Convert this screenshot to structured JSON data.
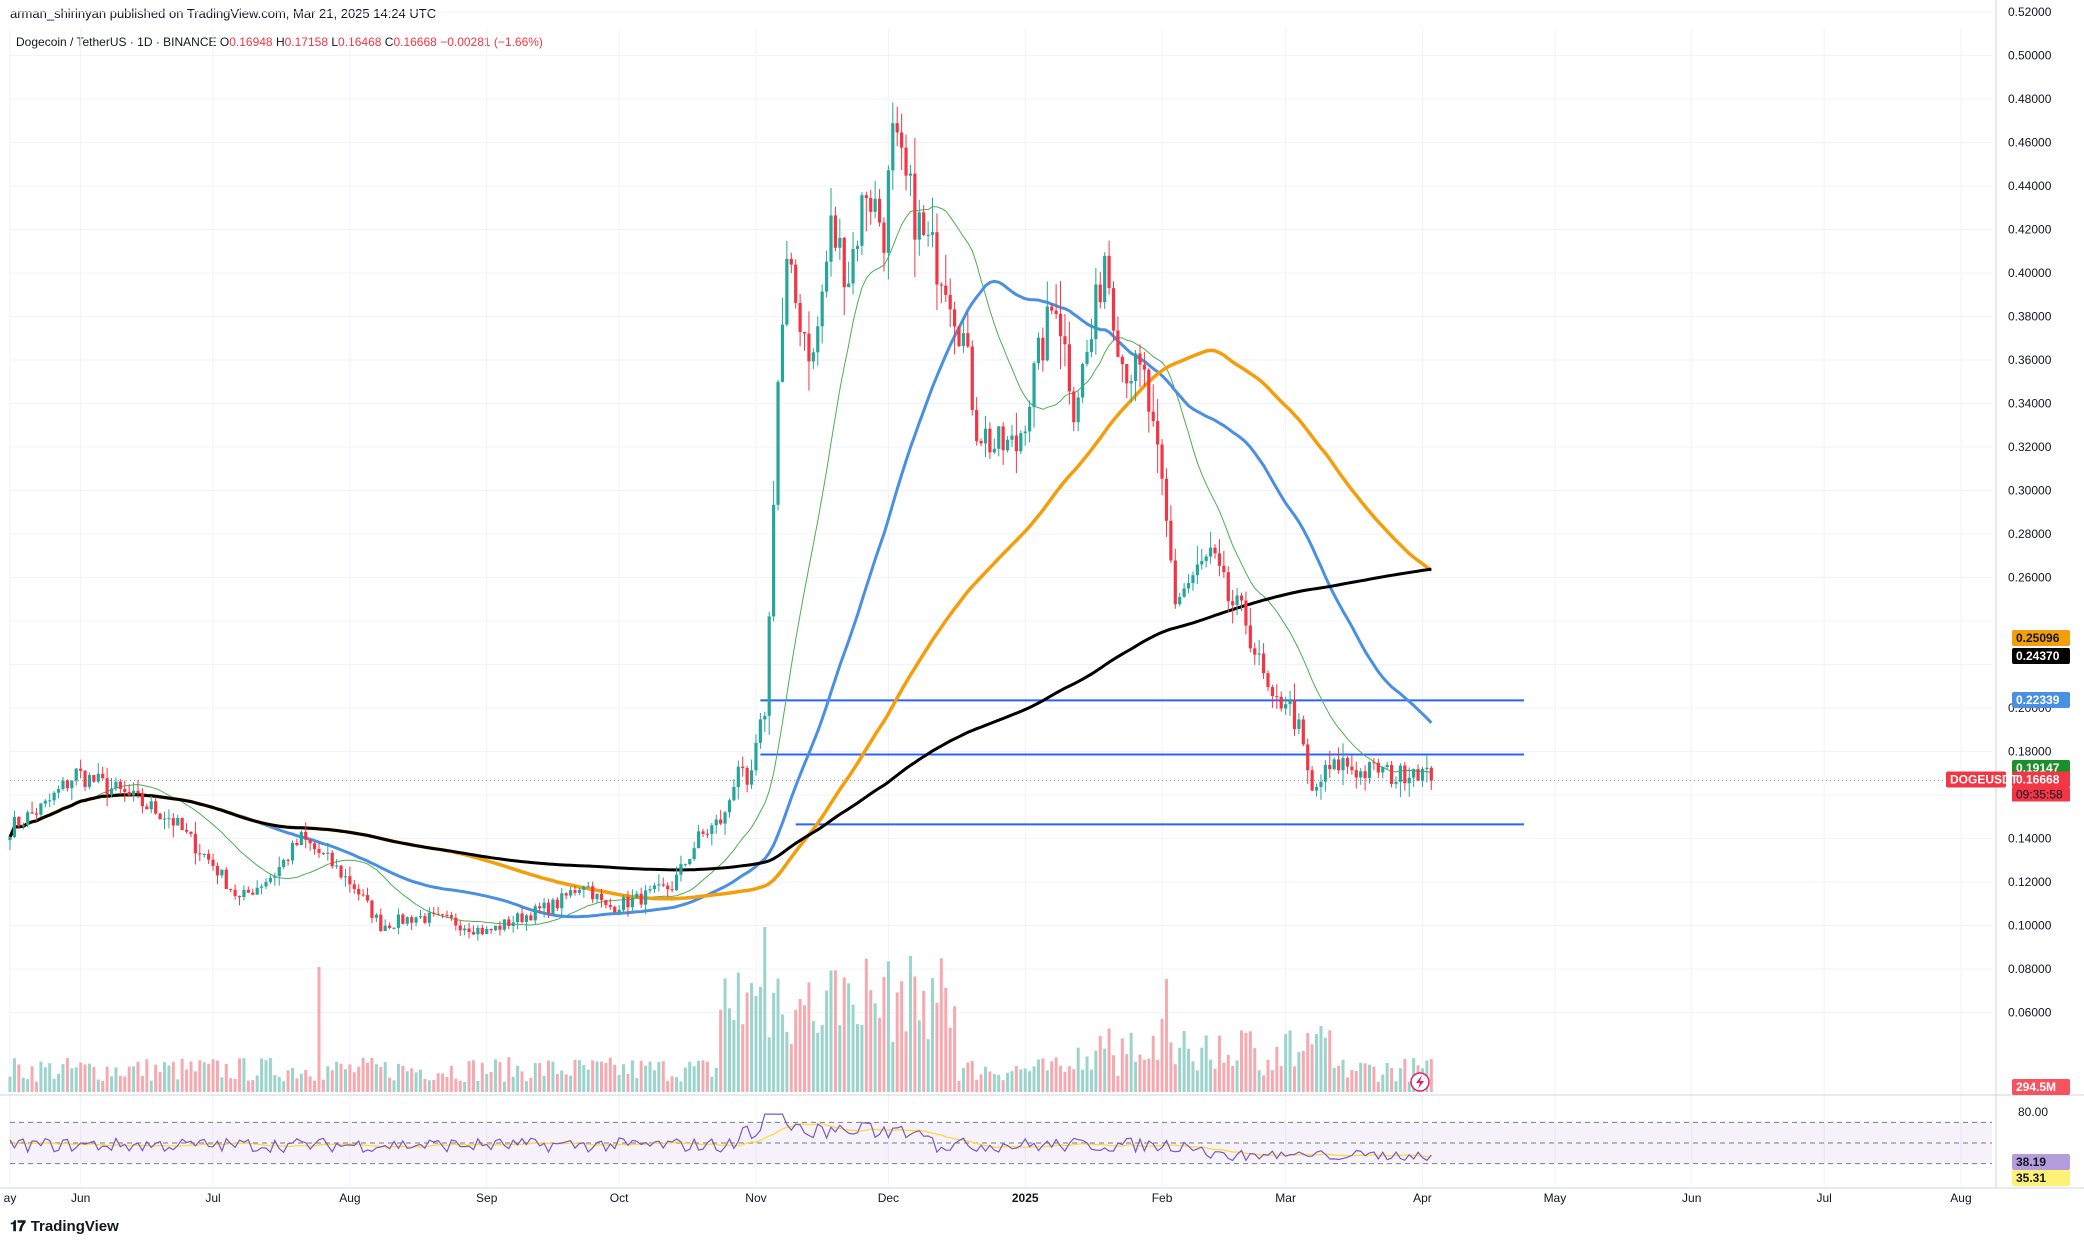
{
  "header": {
    "published": "arman_shirinyan published on TradingView.com, Mar 21, 2025 14:24 UTC",
    "symbol": "Dogecoin / TetherUS · 1D · BINANCE",
    "open_label": "O",
    "open": "0.16948",
    "high_label": "H",
    "high": "0.17158",
    "low_label": "L",
    "low": "0.16468",
    "close_label": "C",
    "close": "0.16668",
    "change": "−0.00281 (−1.66%)"
  },
  "brand": {
    "name": "TradingView",
    "logo": "tv-logo-icon"
  },
  "colors": {
    "up": "#26a69a",
    "down": "#f23645",
    "ma_fast": "#4caf50",
    "ma_blue": "#4a90e2",
    "ma_orange": "#f59e0b",
    "ma_black": "#000000",
    "level": "#2962ff",
    "rsi": "#7e57c2",
    "rsi_ma": "#fdd835"
  },
  "chart_data": [
    {
      "type": "candlestick",
      "title": "Dogecoin / TetherUS · 1D · BINANCE",
      "ylim": [
        0.05,
        0.53
      ],
      "y_ticks": [
        "0.52000",
        "0.50000",
        "0.48000",
        "0.46000",
        "0.44000",
        "0.42000",
        "0.40000",
        "0.38000",
        "0.36000",
        "0.34000",
        "0.32000",
        "0.30000",
        "0.28000",
        "0.26000",
        "0.20000",
        "0.18000",
        "0.14000",
        "0.12000",
        "0.10000",
        "0.08000",
        "0.06000"
      ],
      "x_ticks": [
        "ay",
        "Jun",
        "Jul",
        "Aug",
        "Sep",
        "Oct",
        "Nov",
        "Dec",
        "2025",
        "Feb",
        "Mar",
        "Apr",
        "May",
        "Jun",
        "Jul",
        "Aug"
      ],
      "x_tick_days": [
        0,
        16,
        46,
        77,
        108,
        138,
        169,
        199,
        230,
        261,
        289,
        320,
        350,
        381,
        411,
        442
      ],
      "last_day": 322,
      "price_series": [
        [
          0,
          0.145
        ],
        [
          8,
          0.155
        ],
        [
          15,
          0.17
        ],
        [
          24,
          0.162
        ],
        [
          36,
          0.15
        ],
        [
          46,
          0.128
        ],
        [
          52,
          0.112
        ],
        [
          60,
          0.124
        ],
        [
          66,
          0.14
        ],
        [
          72,
          0.13
        ],
        [
          78,
          0.118
        ],
        [
          84,
          0.1
        ],
        [
          92,
          0.104
        ],
        [
          100,
          0.102
        ],
        [
          108,
          0.097
        ],
        [
          116,
          0.104
        ],
        [
          124,
          0.11
        ],
        [
          130,
          0.12
        ],
        [
          135,
          0.108
        ],
        [
          142,
          0.112
        ],
        [
          150,
          0.118
        ],
        [
          156,
          0.14
        ],
        [
          162,
          0.15
        ],
        [
          165,
          0.175
        ],
        [
          167,
          0.16
        ],
        [
          169,
          0.18
        ],
        [
          171,
          0.2
        ],
        [
          172,
          0.24
        ],
        [
          173,
          0.3
        ],
        [
          174,
          0.35
        ],
        [
          176,
          0.4
        ],
        [
          179,
          0.38
        ],
        [
          182,
          0.36
        ],
        [
          186,
          0.42
        ],
        [
          190,
          0.4
        ],
        [
          194,
          0.44
        ],
        [
          198,
          0.42
        ],
        [
          200,
          0.46
        ],
        [
          203,
          0.44
        ],
        [
          207,
          0.415
        ],
        [
          212,
          0.4
        ],
        [
          216,
          0.37
        ],
        [
          219,
          0.33
        ],
        [
          223,
          0.32
        ],
        [
          228,
          0.32
        ],
        [
          233,
          0.36
        ],
        [
          237,
          0.39
        ],
        [
          241,
          0.34
        ],
        [
          245,
          0.37
        ],
        [
          248,
          0.41
        ],
        [
          252,
          0.36
        ],
        [
          257,
          0.35
        ],
        [
          261,
          0.3
        ],
        [
          264,
          0.25
        ],
        [
          268,
          0.26
        ],
        [
          272,
          0.27
        ],
        [
          276,
          0.25
        ],
        [
          280,
          0.24
        ],
        [
          283,
          0.22
        ],
        [
          286,
          0.2
        ],
        [
          289,
          0.205
        ],
        [
          292,
          0.19
        ],
        [
          295,
          0.16
        ],
        [
          298,
          0.17
        ],
        [
          302,
          0.175
        ],
        [
          306,
          0.17
        ],
        [
          310,
          0.172
        ],
        [
          314,
          0.168
        ],
        [
          318,
          0.173
        ],
        [
          322,
          0.167
        ]
      ],
      "last_price": "0.16668",
      "countdown": "09:35:58",
      "symbol_tag": "DOGEUSDT",
      "series": [
        {
          "name": "",
          "color": "#4caf50",
          "last": "0.19147"
        },
        {
          "name": "",
          "color": "#4a90e2",
          "last": "0.22339"
        },
        {
          "name": "",
          "color": "#f59e0b",
          "last": "0.25096"
        },
        {
          "name": "",
          "color": "#000000",
          "last": "0.24370"
        }
      ],
      "levels": [
        {
          "value": 0.2035,
          "from_day": 170
        },
        {
          "value": 0.1786,
          "from_day": 170
        },
        {
          "value": 0.1465,
          "from_day": 178
        }
      ],
      "volume_last": "294.5M"
    },
    {
      "type": "line",
      "ylim": [
        20,
        90
      ],
      "y_ticks": [
        "80.00"
      ],
      "bands": [
        70,
        50,
        30
      ],
      "rsi_last": "38.19",
      "rsi_ma_last": "35.31"
    }
  ]
}
